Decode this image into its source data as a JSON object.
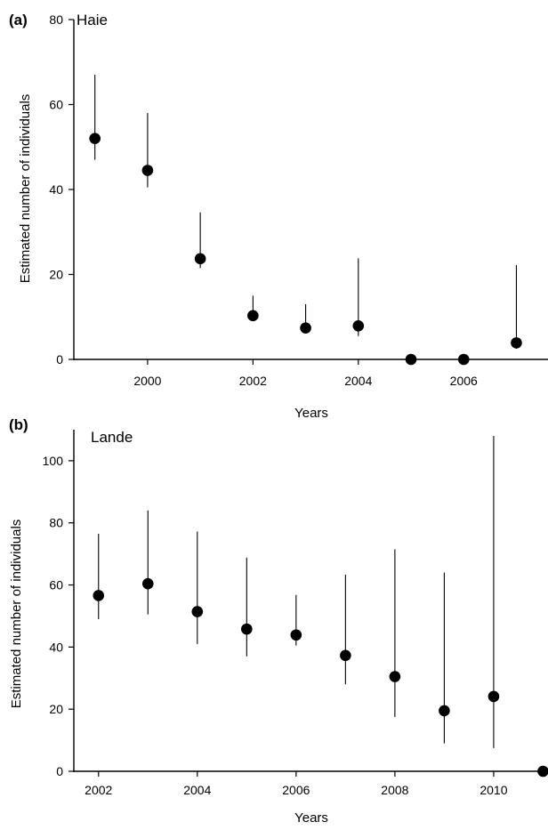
{
  "chart_data": [
    {
      "type": "scatter",
      "panel_label": "(a)",
      "title": "Haie",
      "xlabel": "Years",
      "ylabel": "Estimated number of individuals",
      "xlim": [
        1998.6,
        2007.6
      ],
      "ylim": [
        0,
        80
      ],
      "xticks": [
        2000,
        2002,
        2004,
        2006
      ],
      "yticks": [
        0,
        20,
        40,
        60,
        80
      ],
      "grid": false,
      "marker_color": "#000000",
      "series": [
        {
          "x": [
            1999,
            2000,
            2001,
            2002,
            2003,
            2004,
            2005,
            2006,
            2007
          ],
          "y": [
            52,
            44.5,
            23.7,
            10.3,
            7.4,
            7.9,
            0,
            0,
            3.9
          ],
          "lower": [
            47,
            40.5,
            21.5,
            10.3,
            7.4,
            5.5,
            0,
            0,
            2.5
          ],
          "upper": [
            67,
            58,
            34.6,
            15,
            13,
            23.8,
            0,
            0,
            22.2
          ]
        }
      ]
    },
    {
      "type": "scatter",
      "panel_label": "(b)",
      "title": "Lande",
      "xlabel": "Years",
      "ylabel": "Estimated number of individuals",
      "xlim": [
        2001.5,
        2011.1
      ],
      "ylim": [
        0,
        110
      ],
      "xticks": [
        2002,
        2004,
        2006,
        2008,
        2010
      ],
      "yticks": [
        0,
        20,
        40,
        60,
        80,
        100
      ],
      "grid": false,
      "marker_color": "#000000",
      "series": [
        {
          "x": [
            2002,
            2003,
            2004,
            2005,
            2006,
            2007,
            2008,
            2009,
            2010,
            2011
          ],
          "y": [
            56.6,
            60.4,
            51.4,
            45.8,
            43.9,
            37.3,
            30.5,
            19.5,
            24.1,
            0
          ],
          "lower": [
            49,
            50.5,
            41,
            37,
            40.5,
            28,
            17.5,
            9,
            7.5,
            0
          ],
          "upper": [
            76.5,
            84,
            77.2,
            68.8,
            56.8,
            63.3,
            71.5,
            64,
            108,
            0
          ]
        }
      ]
    }
  ]
}
